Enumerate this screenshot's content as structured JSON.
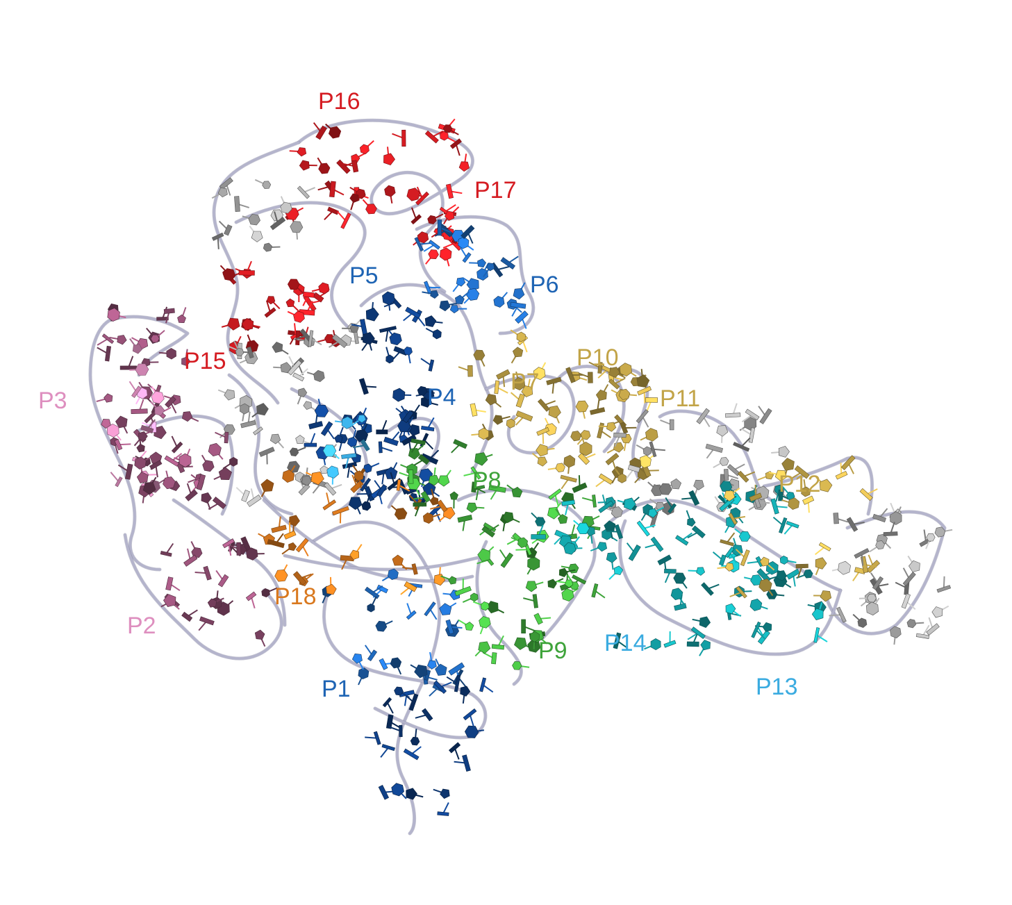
{
  "colors": {
    "backbone": "#b4b4cc",
    "backbone_shadow": "#7c7c98",
    "grey": "#9a9a9a",
    "red": "#d51c22",
    "pink": "#de8fbf",
    "mauve": "#8a4a6d",
    "blue": "#1e64b4",
    "darkblue": "#0e3a7a",
    "gold": "#c2a448",
    "green": "#3ea33a",
    "teal": "#139ba0",
    "cyan": "#3aabe0",
    "orange": "#d9781e"
  },
  "labels": [
    {
      "id": "P1",
      "text": "P1",
      "color": "#1e64b4"
    },
    {
      "id": "P2",
      "text": "P2",
      "color": "#de8fbf"
    },
    {
      "id": "P3",
      "text": "P3",
      "color": "#de8fbf"
    },
    {
      "id": "P4",
      "text": "P4",
      "color": "#1e64b4"
    },
    {
      "id": "P5",
      "text": "P5",
      "color": "#1e64b4"
    },
    {
      "id": "P6",
      "text": "P6",
      "color": "#1e64b4"
    },
    {
      "id": "P7",
      "text": "P7",
      "color": "#c2a448"
    },
    {
      "id": "P8",
      "text": "P8",
      "color": "#3ea33a"
    },
    {
      "id": "P9",
      "text": "P9",
      "color": "#3ea33a"
    },
    {
      "id": "P10",
      "text": "P10",
      "color": "#c2a448"
    },
    {
      "id": "P11",
      "text": "P11",
      "color": "#c2a448"
    },
    {
      "id": "P12",
      "text": "P12",
      "color": "#c2a448"
    },
    {
      "id": "P13",
      "text": "P13",
      "color": "#3aabe0"
    },
    {
      "id": "P14",
      "text": "P14",
      "color": "#3aabe0"
    },
    {
      "id": "P15",
      "text": "P15",
      "color": "#d51c22"
    },
    {
      "id": "P16",
      "text": "P16",
      "color": "#d51c22"
    },
    {
      "id": "P17",
      "text": "P17",
      "color": "#d51c22"
    },
    {
      "id": "P18",
      "text": "P18",
      "color": "#d9781e"
    }
  ]
}
